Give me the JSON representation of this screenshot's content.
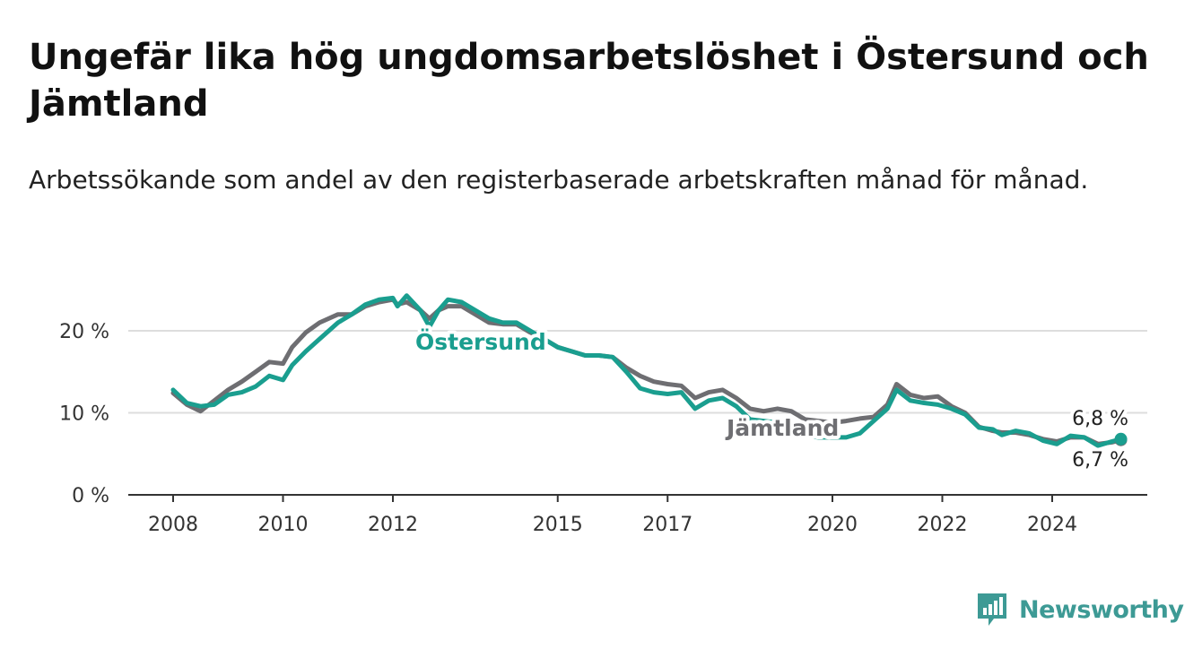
{
  "title": "Ungefär lika hög ungdomsarbetslöshet i Östersund och Jämtland",
  "subtitle": "Arbetssökande som andel av den registerbaserade arbetskraften månad för månad.",
  "logo_text": "Newsworthy",
  "colors": {
    "ostersund": "#1a9e8f",
    "jamtland": "#6e6e72",
    "grid": "#dddddd",
    "axis": "#333333",
    "logo": "#3d9a95"
  },
  "chart_data": {
    "type": "line",
    "x_ticks": [
      "2008",
      "2010",
      "2012",
      "2015",
      "2017",
      "2020",
      "2022",
      "2024"
    ],
    "y_ticks": [
      "0 %",
      "10 %",
      "20 %"
    ],
    "ylim": [
      0,
      26
    ],
    "xlim": [
      "2007-01",
      "2025-12"
    ],
    "grid": "horizontal",
    "series": [
      {
        "name": "Östersund",
        "label": "Östersund",
        "end_label": "6,8 %",
        "points": [
          [
            "2008-01",
            12.8
          ],
          [
            "2008-04",
            11.2
          ],
          [
            "2008-07",
            10.8
          ],
          [
            "2008-10",
            11.0
          ],
          [
            "2009-01",
            12.2
          ],
          [
            "2009-04",
            12.5
          ],
          [
            "2009-07",
            13.2
          ],
          [
            "2009-10",
            14.5
          ],
          [
            "2010-01",
            14.0
          ],
          [
            "2010-03",
            15.8
          ],
          [
            "2010-06",
            17.5
          ],
          [
            "2010-09",
            19.0
          ],
          [
            "2011-01",
            21.0
          ],
          [
            "2011-04",
            22.0
          ],
          [
            "2011-07",
            23.2
          ],
          [
            "2011-10",
            23.8
          ],
          [
            "2012-01",
            24.0
          ],
          [
            "2012-02",
            23.0
          ],
          [
            "2012-04",
            24.3
          ],
          [
            "2012-07",
            22.5
          ],
          [
            "2012-09",
            20.5
          ],
          [
            "2012-11",
            22.5
          ],
          [
            "2013-01",
            23.8
          ],
          [
            "2013-04",
            23.5
          ],
          [
            "2013-07",
            22.5
          ],
          [
            "2013-10",
            21.5
          ],
          [
            "2014-01",
            21.0
          ],
          [
            "2014-04",
            21.0
          ],
          [
            "2014-07",
            20.0
          ],
          [
            "2014-10",
            19.0
          ],
          [
            "2015-01",
            18.0
          ],
          [
            "2015-04",
            17.5
          ],
          [
            "2015-07",
            17.0
          ],
          [
            "2015-10",
            17.0
          ],
          [
            "2016-01",
            16.8
          ],
          [
            "2016-04",
            15.0
          ],
          [
            "2016-07",
            13.0
          ],
          [
            "2016-10",
            12.5
          ],
          [
            "2017-01",
            12.3
          ],
          [
            "2017-04",
            12.5
          ],
          [
            "2017-07",
            10.5
          ],
          [
            "2017-10",
            11.5
          ],
          [
            "2018-01",
            11.8
          ],
          [
            "2018-04",
            10.8
          ],
          [
            "2018-07",
            9.2
          ],
          [
            "2018-10",
            9.0
          ],
          [
            "2019-01",
            8.8
          ],
          [
            "2019-04",
            8.5
          ],
          [
            "2019-07",
            7.2
          ],
          [
            "2019-10",
            7.0
          ],
          [
            "2020-01",
            7.0
          ],
          [
            "2020-04",
            7.0
          ],
          [
            "2020-07",
            7.5
          ],
          [
            "2020-10",
            9.0
          ],
          [
            "2021-01",
            10.5
          ],
          [
            "2021-03",
            12.8
          ],
          [
            "2021-06",
            11.5
          ],
          [
            "2021-09",
            11.2
          ],
          [
            "2021-12",
            11.0
          ],
          [
            "2022-03",
            10.5
          ],
          [
            "2022-06",
            9.8
          ],
          [
            "2022-09",
            8.2
          ],
          [
            "2022-12",
            8.0
          ],
          [
            "2023-02",
            7.3
          ],
          [
            "2023-05",
            7.8
          ],
          [
            "2023-08",
            7.5
          ],
          [
            "2023-11",
            6.6
          ],
          [
            "2024-02",
            6.2
          ],
          [
            "2024-05",
            7.2
          ],
          [
            "2024-08",
            7.0
          ],
          [
            "2024-11",
            6.0
          ],
          [
            "2025-02",
            6.5
          ],
          [
            "2025-04",
            6.8
          ]
        ]
      },
      {
        "name": "Jämtland",
        "label": "Jämtland",
        "end_label": "6,7 %",
        "points": [
          [
            "2008-01",
            12.4
          ],
          [
            "2008-04",
            11.0
          ],
          [
            "2008-07",
            10.2
          ],
          [
            "2008-10",
            11.5
          ],
          [
            "2009-01",
            12.8
          ],
          [
            "2009-04",
            13.8
          ],
          [
            "2009-07",
            15.0
          ],
          [
            "2009-10",
            16.2
          ],
          [
            "2010-01",
            16.0
          ],
          [
            "2010-03",
            18.0
          ],
          [
            "2010-06",
            19.8
          ],
          [
            "2010-09",
            21.0
          ],
          [
            "2011-01",
            22.0
          ],
          [
            "2011-04",
            22.0
          ],
          [
            "2011-07",
            23.0
          ],
          [
            "2011-10",
            23.5
          ],
          [
            "2012-01",
            23.8
          ],
          [
            "2012-02",
            23.2
          ],
          [
            "2012-04",
            23.5
          ],
          [
            "2012-07",
            22.5
          ],
          [
            "2012-09",
            21.5
          ],
          [
            "2012-11",
            22.5
          ],
          [
            "2013-01",
            23.0
          ],
          [
            "2013-04",
            23.0
          ],
          [
            "2013-07",
            22.0
          ],
          [
            "2013-10",
            21.0
          ],
          [
            "2014-01",
            20.8
          ],
          [
            "2014-04",
            20.8
          ],
          [
            "2014-07",
            19.8
          ],
          [
            "2014-10",
            19.0
          ],
          [
            "2015-01",
            18.0
          ],
          [
            "2015-04",
            17.5
          ],
          [
            "2015-07",
            17.0
          ],
          [
            "2015-10",
            17.0
          ],
          [
            "2016-01",
            16.8
          ],
          [
            "2016-04",
            15.5
          ],
          [
            "2016-07",
            14.5
          ],
          [
            "2016-10",
            13.8
          ],
          [
            "2017-01",
            13.5
          ],
          [
            "2017-04",
            13.3
          ],
          [
            "2017-07",
            11.8
          ],
          [
            "2017-10",
            12.5
          ],
          [
            "2018-01",
            12.8
          ],
          [
            "2018-04",
            11.8
          ],
          [
            "2018-07",
            10.5
          ],
          [
            "2018-10",
            10.2
          ],
          [
            "2019-01",
            10.5
          ],
          [
            "2019-04",
            10.2
          ],
          [
            "2019-07",
            9.2
          ],
          [
            "2019-10",
            9.0
          ],
          [
            "2020-01",
            8.8
          ],
          [
            "2020-04",
            9.0
          ],
          [
            "2020-07",
            9.3
          ],
          [
            "2020-10",
            9.5
          ],
          [
            "2021-01",
            11.0
          ],
          [
            "2021-03",
            13.5
          ],
          [
            "2021-06",
            12.2
          ],
          [
            "2021-09",
            11.8
          ],
          [
            "2021-12",
            12.0
          ],
          [
            "2022-03",
            10.8
          ],
          [
            "2022-06",
            10.0
          ],
          [
            "2022-09",
            8.3
          ],
          [
            "2022-12",
            7.8
          ],
          [
            "2023-02",
            7.6
          ],
          [
            "2023-05",
            7.6
          ],
          [
            "2023-08",
            7.3
          ],
          [
            "2023-11",
            6.8
          ],
          [
            "2024-02",
            6.5
          ],
          [
            "2024-05",
            7.0
          ],
          [
            "2024-08",
            7.0
          ],
          [
            "2024-11",
            6.2
          ],
          [
            "2025-02",
            6.4
          ],
          [
            "2025-04",
            6.7
          ]
        ]
      }
    ]
  }
}
